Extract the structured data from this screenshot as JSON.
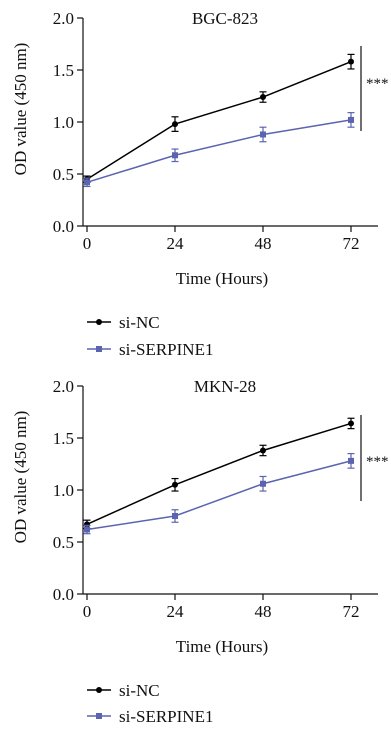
{
  "chart_data": [
    {
      "type": "line",
      "title": "BGC-823",
      "xlabel": "Time (Hours)",
      "ylabel": "OD value (450 nm)",
      "x": [
        0,
        24,
        48,
        72
      ],
      "x_tick_labels": [
        "0",
        "24",
        "48",
        "72"
      ],
      "ylim": [
        0.0,
        2.0
      ],
      "y_ticks": [
        0.0,
        0.5,
        1.0,
        1.5,
        2.0
      ],
      "y_tick_labels": [
        "0.0",
        "0.5",
        "1.0",
        "1.5",
        "2.0"
      ],
      "significance": "***",
      "grid": false,
      "legend_position": "bottom",
      "series": [
        {
          "name": "si-NC",
          "color": "#000000",
          "marker": "circle",
          "values": [
            0.45,
            0.98,
            1.24,
            1.58
          ],
          "errors": [
            0.03,
            0.07,
            0.05,
            0.07
          ]
        },
        {
          "name": "si-SERPINE1",
          "color": "#5b64b0",
          "marker": "square",
          "values": [
            0.42,
            0.68,
            0.88,
            1.02
          ],
          "errors": [
            0.04,
            0.06,
            0.07,
            0.07
          ]
        }
      ]
    },
    {
      "type": "line",
      "title": "MKN-28",
      "xlabel": "Time (Hours)",
      "ylabel": "OD value (450 nm)",
      "x": [
        0,
        24,
        48,
        72
      ],
      "x_tick_labels": [
        "0",
        "24",
        "48",
        "72"
      ],
      "ylim": [
        0.0,
        2.0
      ],
      "y_ticks": [
        0.0,
        0.5,
        1.0,
        1.5,
        2.0
      ],
      "y_tick_labels": [
        "0.0",
        "0.5",
        "1.0",
        "1.5",
        "2.0"
      ],
      "significance": "***",
      "grid": false,
      "legend_position": "bottom",
      "series": [
        {
          "name": "si-NC",
          "color": "#000000",
          "marker": "circle",
          "values": [
            0.67,
            1.05,
            1.38,
            1.64
          ],
          "errors": [
            0.04,
            0.06,
            0.05,
            0.05
          ]
        },
        {
          "name": "si-SERPINE1",
          "color": "#5b64b0",
          "marker": "square",
          "values": [
            0.62,
            0.75,
            1.06,
            1.28
          ],
          "errors": [
            0.04,
            0.06,
            0.07,
            0.07
          ]
        }
      ]
    }
  ]
}
